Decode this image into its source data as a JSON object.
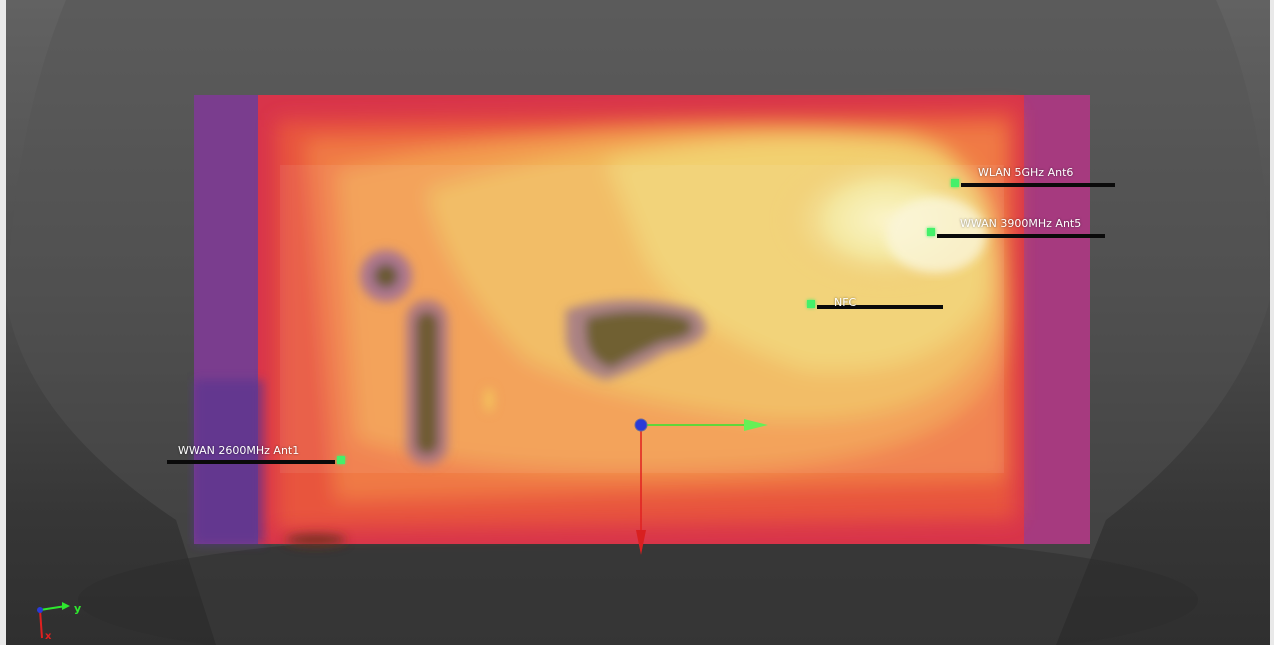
{
  "viewport": {
    "antennas": [
      {
        "id": "wlan-5ghz-ant6",
        "label": "WLAN 5GHz Ant6"
      },
      {
        "id": "wwan-3900mhz-ant5",
        "label": "WWAN 3900MHz Ant5"
      },
      {
        "id": "nfc",
        "label": "NFC"
      },
      {
        "id": "wwan-2600mhz-ant1",
        "label": "WWAN 2600MHz Ant1"
      }
    ],
    "triad": {
      "y_label": "y",
      "x_label": "x"
    },
    "colors": {
      "background": "#4d4d4d",
      "marker": "#44f06a",
      "axis_x": "#e02020",
      "axis_y": "#2ee82e",
      "axis_z": "#2a3ad8"
    }
  }
}
